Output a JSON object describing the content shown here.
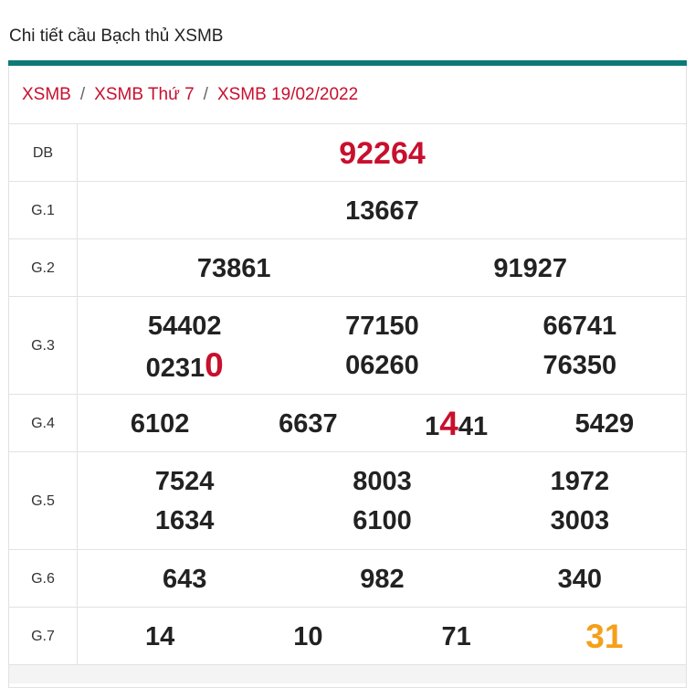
{
  "header": {
    "title": "Chi tiết cầu Bạch thủ XSMB"
  },
  "breadcrumb": {
    "separator": "/",
    "items": [
      "XSMB",
      "XSMB Thứ 7",
      "XSMB 19/02/2022"
    ]
  },
  "table": {
    "rows": [
      {
        "label": "DB",
        "numbers": [
          {
            "parts": [
              {
                "text": "92264",
                "style": "special"
              }
            ]
          }
        ]
      },
      {
        "label": "G.1",
        "numbers": [
          {
            "parts": [
              {
                "text": "13667",
                "style": "normal"
              }
            ]
          }
        ]
      },
      {
        "label": "G.2",
        "numbers": [
          {
            "parts": [
              {
                "text": "73861",
                "style": "normal"
              }
            ]
          },
          {
            "parts": [
              {
                "text": "91927",
                "style": "normal"
              }
            ]
          }
        ]
      },
      {
        "label": "G.3",
        "numbers": [
          {
            "parts": [
              {
                "text": "54402",
                "style": "normal"
              }
            ]
          },
          {
            "parts": [
              {
                "text": "77150",
                "style": "normal"
              }
            ]
          },
          {
            "parts": [
              {
                "text": "66741",
                "style": "normal"
              }
            ]
          },
          {
            "parts": [
              {
                "text": "0231",
                "style": "normal"
              },
              {
                "text": "0",
                "style": "red"
              }
            ]
          },
          {
            "parts": [
              {
                "text": "06260",
                "style": "normal"
              }
            ]
          },
          {
            "parts": [
              {
                "text": "76350",
                "style": "normal"
              }
            ]
          }
        ]
      },
      {
        "label": "G.4",
        "numbers": [
          {
            "parts": [
              {
                "text": "6102",
                "style": "normal"
              }
            ]
          },
          {
            "parts": [
              {
                "text": "6637",
                "style": "normal"
              }
            ]
          },
          {
            "parts": [
              {
                "text": "1",
                "style": "normal"
              },
              {
                "text": "4",
                "style": "red"
              },
              {
                "text": "41",
                "style": "normal"
              }
            ]
          },
          {
            "parts": [
              {
                "text": "5429",
                "style": "normal"
              }
            ]
          }
        ]
      },
      {
        "label": "G.5",
        "numbers": [
          {
            "parts": [
              {
                "text": "7524",
                "style": "normal"
              }
            ]
          },
          {
            "parts": [
              {
                "text": "8003",
                "style": "normal"
              }
            ]
          },
          {
            "parts": [
              {
                "text": "1972",
                "style": "normal"
              }
            ]
          },
          {
            "parts": [
              {
                "text": "1634",
                "style": "normal"
              }
            ]
          },
          {
            "parts": [
              {
                "text": "6100",
                "style": "normal"
              }
            ]
          },
          {
            "parts": [
              {
                "text": "3003",
                "style": "normal"
              }
            ]
          }
        ]
      },
      {
        "label": "G.6",
        "numbers": [
          {
            "parts": [
              {
                "text": "643",
                "style": "normal"
              }
            ]
          },
          {
            "parts": [
              {
                "text": "982",
                "style": "normal"
              }
            ]
          },
          {
            "parts": [
              {
                "text": "340",
                "style": "normal"
              }
            ]
          }
        ]
      },
      {
        "label": "G.7",
        "numbers": [
          {
            "parts": [
              {
                "text": "14",
                "style": "normal"
              }
            ]
          },
          {
            "parts": [
              {
                "text": "10",
                "style": "normal"
              }
            ]
          },
          {
            "parts": [
              {
                "text": "71",
                "style": "normal"
              }
            ]
          },
          {
            "parts": [
              {
                "text": "31",
                "style": "orange"
              }
            ]
          }
        ]
      }
    ]
  }
}
